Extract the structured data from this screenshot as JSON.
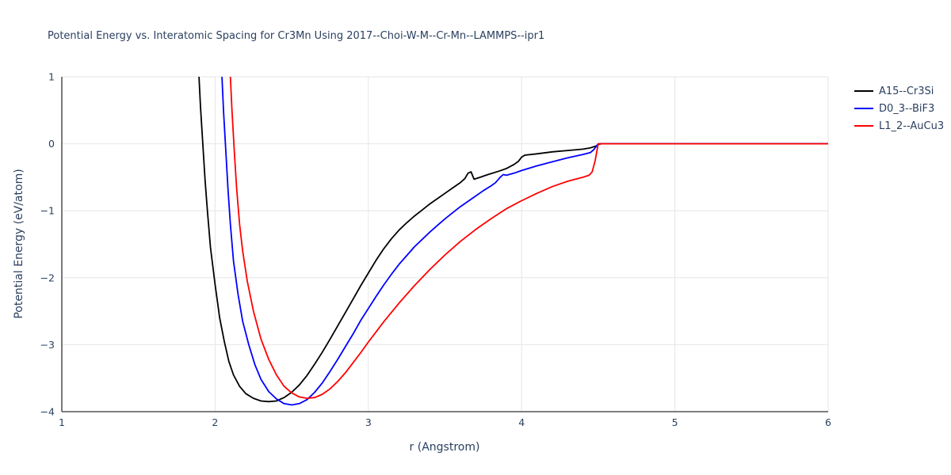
{
  "chart_data": {
    "type": "line",
    "title": "Potential Energy vs. Interatomic Spacing for Cr3Mn Using 2017--Choi-W-M--Cr-Mn--LAMMPS--ipr1",
    "xlabel": "r (Angstrom)",
    "ylabel": "Potential Energy (eV/atom)",
    "xlim": [
      1,
      6
    ],
    "ylim": [
      -4,
      1
    ],
    "x_ticks": [
      1,
      2,
      3,
      4,
      5,
      6
    ],
    "x_tick_labels": [
      "1",
      "2",
      "3",
      "4",
      "5",
      "6"
    ],
    "y_ticks": [
      1,
      0,
      -1,
      -2,
      -3,
      -4
    ],
    "y_tick_labels": [
      "1",
      "0",
      "−1",
      "−2",
      "−3",
      "−4"
    ],
    "grid": true,
    "grid_color": "#e6e6e6",
    "axis_color": "#333333",
    "text_color": "#2a3f5f",
    "legend_position": "top-right-outside",
    "series": [
      {
        "name": "A15--Cr3Si",
        "color": "#000000",
        "points": [
          [
            1.895,
            1.0
          ],
          [
            1.905,
            0.55
          ],
          [
            1.92,
            0.0
          ],
          [
            1.935,
            -0.55
          ],
          [
            1.95,
            -1.0
          ],
          [
            1.97,
            -1.55
          ],
          [
            2.0,
            -2.1
          ],
          [
            2.03,
            -2.6
          ],
          [
            2.06,
            -2.95
          ],
          [
            2.09,
            -3.25
          ],
          [
            2.12,
            -3.45
          ],
          [
            2.16,
            -3.62
          ],
          [
            2.2,
            -3.73
          ],
          [
            2.25,
            -3.8
          ],
          [
            2.3,
            -3.84
          ],
          [
            2.35,
            -3.85
          ],
          [
            2.4,
            -3.84
          ],
          [
            2.45,
            -3.79
          ],
          [
            2.5,
            -3.71
          ],
          [
            2.55,
            -3.6
          ],
          [
            2.6,
            -3.46
          ],
          [
            2.65,
            -3.29
          ],
          [
            2.7,
            -3.11
          ],
          [
            2.75,
            -2.92
          ],
          [
            2.8,
            -2.72
          ],
          [
            2.85,
            -2.52
          ],
          [
            2.9,
            -2.32
          ],
          [
            2.95,
            -2.12
          ],
          [
            3.0,
            -1.93
          ],
          [
            3.05,
            -1.74
          ],
          [
            3.1,
            -1.57
          ],
          [
            3.15,
            -1.42
          ],
          [
            3.2,
            -1.29
          ],
          [
            3.25,
            -1.18
          ],
          [
            3.3,
            -1.08
          ],
          [
            3.35,
            -0.99
          ],
          [
            3.4,
            -0.9
          ],
          [
            3.45,
            -0.82
          ],
          [
            3.5,
            -0.74
          ],
          [
            3.55,
            -0.66
          ],
          [
            3.6,
            -0.58
          ],
          [
            3.63,
            -0.52
          ],
          [
            3.65,
            -0.44
          ],
          [
            3.67,
            -0.42
          ],
          [
            3.69,
            -0.53
          ],
          [
            3.73,
            -0.5
          ],
          [
            3.78,
            -0.46
          ],
          [
            3.85,
            -0.41
          ],
          [
            3.9,
            -0.37
          ],
          [
            3.95,
            -0.31
          ],
          [
            3.98,
            -0.26
          ],
          [
            4.0,
            -0.2
          ],
          [
            4.02,
            -0.17
          ],
          [
            4.1,
            -0.15
          ],
          [
            4.2,
            -0.12
          ],
          [
            4.3,
            -0.1
          ],
          [
            4.4,
            -0.08
          ],
          [
            4.45,
            -0.06
          ],
          [
            4.49,
            -0.03
          ],
          [
            4.5,
            -0.01
          ],
          [
            4.52,
            0.0
          ],
          [
            5.0,
            0.0
          ],
          [
            6.0,
            0.0
          ]
        ]
      },
      {
        "name": "D0_3--BiF3",
        "color": "#0000ff",
        "points": [
          [
            2.045,
            1.0
          ],
          [
            2.055,
            0.5
          ],
          [
            2.07,
            -0.1
          ],
          [
            2.085,
            -0.7
          ],
          [
            2.1,
            -1.2
          ],
          [
            2.12,
            -1.75
          ],
          [
            2.15,
            -2.25
          ],
          [
            2.18,
            -2.65
          ],
          [
            2.22,
            -3.0
          ],
          [
            2.26,
            -3.3
          ],
          [
            2.3,
            -3.52
          ],
          [
            2.35,
            -3.7
          ],
          [
            2.4,
            -3.81
          ],
          [
            2.45,
            -3.88
          ],
          [
            2.5,
            -3.9
          ],
          [
            2.55,
            -3.88
          ],
          [
            2.6,
            -3.82
          ],
          [
            2.65,
            -3.71
          ],
          [
            2.7,
            -3.57
          ],
          [
            2.75,
            -3.4
          ],
          [
            2.8,
            -3.22
          ],
          [
            2.85,
            -3.03
          ],
          [
            2.9,
            -2.84
          ],
          [
            2.95,
            -2.64
          ],
          [
            3.0,
            -2.46
          ],
          [
            3.05,
            -2.28
          ],
          [
            3.1,
            -2.11
          ],
          [
            3.15,
            -1.95
          ],
          [
            3.2,
            -1.8
          ],
          [
            3.25,
            -1.67
          ],
          [
            3.3,
            -1.54
          ],
          [
            3.35,
            -1.43
          ],
          [
            3.4,
            -1.32
          ],
          [
            3.45,
            -1.22
          ],
          [
            3.5,
            -1.12
          ],
          [
            3.55,
            -1.03
          ],
          [
            3.6,
            -0.94
          ],
          [
            3.65,
            -0.86
          ],
          [
            3.7,
            -0.78
          ],
          [
            3.75,
            -0.7
          ],
          [
            3.8,
            -0.63
          ],
          [
            3.83,
            -0.58
          ],
          [
            3.86,
            -0.5
          ],
          [
            3.88,
            -0.46
          ],
          [
            3.9,
            -0.47
          ],
          [
            3.95,
            -0.44
          ],
          [
            4.0,
            -0.4
          ],
          [
            4.1,
            -0.33
          ],
          [
            4.2,
            -0.27
          ],
          [
            4.3,
            -0.21
          ],
          [
            4.4,
            -0.16
          ],
          [
            4.45,
            -0.13
          ],
          [
            4.47,
            -0.09
          ],
          [
            4.5,
            0.0
          ],
          [
            5.0,
            0.0
          ],
          [
            6.0,
            0.0
          ]
        ]
      },
      {
        "name": "L1_2--AuCu3",
        "color": "#ff0000",
        "points": [
          [
            2.1,
            1.0
          ],
          [
            2.11,
            0.5
          ],
          [
            2.125,
            -0.1
          ],
          [
            2.14,
            -0.65
          ],
          [
            2.16,
            -1.2
          ],
          [
            2.18,
            -1.6
          ],
          [
            2.21,
            -2.05
          ],
          [
            2.25,
            -2.5
          ],
          [
            2.3,
            -2.92
          ],
          [
            2.35,
            -3.22
          ],
          [
            2.4,
            -3.45
          ],
          [
            2.45,
            -3.62
          ],
          [
            2.5,
            -3.72
          ],
          [
            2.55,
            -3.78
          ],
          [
            2.6,
            -3.8
          ],
          [
            2.65,
            -3.79
          ],
          [
            2.7,
            -3.74
          ],
          [
            2.75,
            -3.66
          ],
          [
            2.8,
            -3.55
          ],
          [
            2.85,
            -3.42
          ],
          [
            2.9,
            -3.27
          ],
          [
            2.95,
            -3.12
          ],
          [
            3.0,
            -2.96
          ],
          [
            3.05,
            -2.81
          ],
          [
            3.1,
            -2.66
          ],
          [
            3.2,
            -2.38
          ],
          [
            3.3,
            -2.12
          ],
          [
            3.4,
            -1.88
          ],
          [
            3.5,
            -1.66
          ],
          [
            3.6,
            -1.46
          ],
          [
            3.7,
            -1.28
          ],
          [
            3.8,
            -1.12
          ],
          [
            3.9,
            -0.97
          ],
          [
            4.0,
            -0.85
          ],
          [
            4.1,
            -0.74
          ],
          [
            4.2,
            -0.64
          ],
          [
            4.3,
            -0.56
          ],
          [
            4.35,
            -0.53
          ],
          [
            4.4,
            -0.5
          ],
          [
            4.44,
            -0.47
          ],
          [
            4.46,
            -0.42
          ],
          [
            4.48,
            -0.25
          ],
          [
            4.49,
            -0.12
          ],
          [
            4.5,
            0.0
          ],
          [
            5.0,
            0.0
          ],
          [
            6.0,
            0.0
          ]
        ]
      }
    ]
  }
}
